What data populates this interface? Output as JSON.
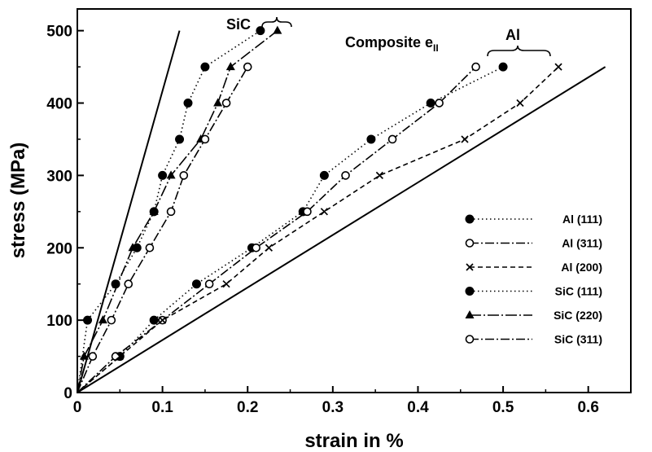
{
  "chart_data": {
    "type": "line",
    "title": "",
    "xlabel": "strain in %",
    "ylabel": "stress  (MPa)",
    "xlim": [
      0,
      0.65
    ],
    "ylim": [
      0,
      530
    ],
    "xticks": [
      "0",
      "0.1",
      "0.2",
      "0.3",
      "0.4",
      "0.5",
      "0.6"
    ],
    "yticks": [
      "0",
      "100",
      "200",
      "300",
      "400",
      "500"
    ],
    "grid": false,
    "legend_position": "bottom-right",
    "annotations": {
      "sic_group": "SiC",
      "composite_main": "Composite e",
      "composite_sub": "II",
      "al_group": "Al"
    },
    "reference_lines": [
      {
        "x": [
          0,
          0.12
        ],
        "y": [
          0,
          500
        ]
      },
      {
        "x": [
          0,
          0.62
        ],
        "y": [
          0,
          450
        ]
      }
    ],
    "series": [
      {
        "name": "Al (111)",
        "marker": "filled-circle",
        "dash": "1.5,3.5",
        "x": [
          0.05,
          0.09,
          0.14,
          0.205,
          0.265,
          0.29,
          0.345,
          0.415,
          0.5
        ],
        "y": [
          50,
          100,
          150,
          200,
          250,
          300,
          350,
          400,
          450
        ]
      },
      {
        "name": "Al (311)",
        "marker": "open-circle",
        "dash": "11,3,2,3",
        "x": [
          0.045,
          0.1,
          0.155,
          0.21,
          0.27,
          0.315,
          0.37,
          0.425,
          0.468
        ],
        "y": [
          50,
          100,
          150,
          200,
          250,
          300,
          350,
          400,
          450
        ]
      },
      {
        "name": "Al (200)",
        "marker": "x",
        "dash": "6,4",
        "x": [
          0.05,
          0.1,
          0.175,
          0.225,
          0.29,
          0.355,
          0.455,
          0.52,
          0.565
        ],
        "y": [
          50,
          100,
          150,
          200,
          250,
          300,
          350,
          400,
          450
        ]
      },
      {
        "name": "SiC (111)",
        "marker": "filled-circle",
        "dash": "1.5,3.5",
        "x": [
          0.012,
          0.045,
          0.07,
          0.09,
          0.1,
          0.12,
          0.13,
          0.15,
          0.215
        ],
        "y": [
          100,
          150,
          200,
          250,
          300,
          350,
          400,
          450,
          500
        ]
      },
      {
        "name": "SiC (220)",
        "marker": "filled-triangle",
        "dash": "14,3,2,3",
        "x": [
          0.008,
          0.03,
          0.065,
          0.09,
          0.11,
          0.145,
          0.165,
          0.18,
          0.235
        ],
        "y": [
          50,
          100,
          200,
          250,
          300,
          350,
          400,
          450,
          500
        ]
      },
      {
        "name": "SiC (311)",
        "marker": "open-circle",
        "dash": "11,3,2,3",
        "x": [
          0.018,
          0.04,
          0.06,
          0.085,
          0.11,
          0.125,
          0.15,
          0.175,
          0.2
        ],
        "y": [
          50,
          100,
          150,
          200,
          250,
          300,
          350,
          400,
          450
        ]
      }
    ]
  }
}
